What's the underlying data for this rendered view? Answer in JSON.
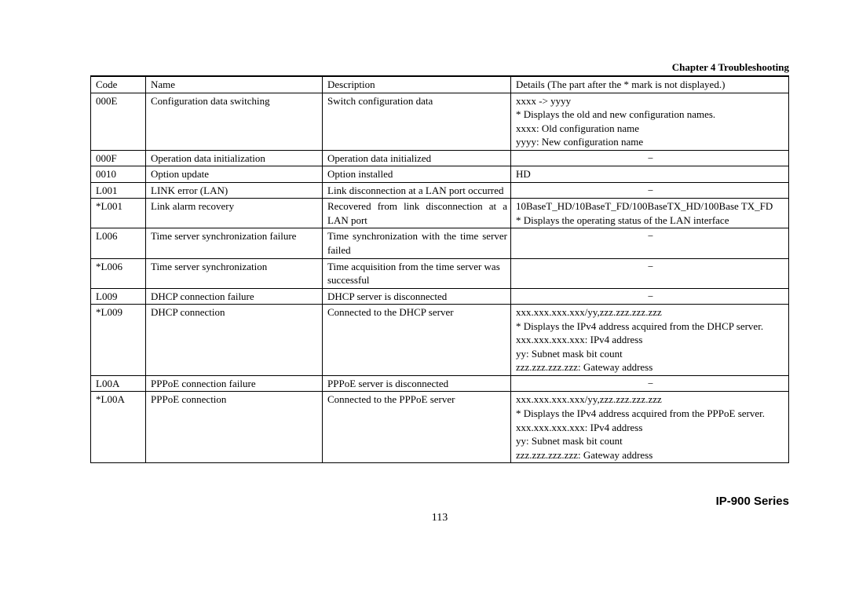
{
  "header": {
    "chapter": "Chapter 4  Troubleshooting"
  },
  "table": {
    "columns": [
      "Code",
      "Name",
      "Description",
      "Details (The part after the * mark is not displayed.)"
    ],
    "rows": [
      {
        "code": "000E",
        "name": "Configuration data switching",
        "desc": "Switch configuration data",
        "details": [
          "xxxx -> yyyy",
          "* Displays the old and new configuration names.",
          "xxxx: Old configuration name",
          "yyyy: New configuration name"
        ],
        "details_align": "left"
      },
      {
        "code": "000F",
        "name": "Operation data initialization",
        "desc": "Operation data initialized",
        "details": [
          "−"
        ],
        "details_align": "center"
      },
      {
        "code": "0010",
        "name": "Option update",
        "desc": "Option installed",
        "details": [
          "HD"
        ],
        "details_align": "left"
      },
      {
        "code": "L001",
        "name": "LINK error (LAN)",
        "desc": "Link disconnection at a LAN port occurred",
        "desc_justify": true,
        "details": [
          "−"
        ],
        "details_align": "center"
      },
      {
        "code": "*L001",
        "name": "Link alarm recovery",
        "desc": "Recovered from link disconnection at a LAN port",
        "desc_justify": true,
        "details": [
          "10BaseT_HD/10BaseT_FD/100BaseTX_HD/100Base TX_FD",
          "* Displays the operating status of the LAN interface"
        ],
        "details_align": "left"
      },
      {
        "code": "L006",
        "name": "Time server synchronization failure",
        "desc": "Time synchronization with the time server failed",
        "desc_justify": true,
        "details": [
          "−"
        ],
        "details_align": "center"
      },
      {
        "code": "*L006",
        "name": "Time server synchronization",
        "desc": "Time acquisition from the time server was successful",
        "details": [
          "−"
        ],
        "details_align": "center"
      },
      {
        "code": "L009",
        "name": "DHCP connection failure",
        "desc": "DHCP server is disconnected",
        "details": [
          "−"
        ],
        "details_align": "center"
      },
      {
        "code": "*L009",
        "name": "DHCP connection",
        "desc": "Connected to the DHCP server",
        "details": [
          "xxx.xxx.xxx.xxx/yy,zzz.zzz.zzz.zzz",
          "* Displays the IPv4 address acquired from the DHCP server.",
          " xxx.xxx.xxx.xxx: IPv4 address",
          " yy: Subnet mask bit count",
          " zzz.zzz.zzz.zzz: Gateway address"
        ],
        "details_align": "left"
      },
      {
        "code": "L00A",
        "name": "PPPoE connection failure",
        "desc": "PPPoE server is disconnected",
        "details": [
          "−"
        ],
        "details_align": "center"
      },
      {
        "code": "*L00A",
        "name": "PPPoE connection",
        "desc": "Connected to the PPPoE server",
        "details": [
          "xxx.xxx.xxx.xxx/yy,zzz.zzz.zzz.zzz",
          "* Displays the IPv4 address acquired from the PPPoE server.",
          " xxx.xxx.xxx.xxx: IPv4 address",
          " yy: Subnet mask bit count",
          " zzz.zzz.zzz.zzz: Gateway address"
        ],
        "details_align": "left"
      }
    ]
  },
  "footer": {
    "page_number": "113",
    "series": "IP-900 Series"
  }
}
